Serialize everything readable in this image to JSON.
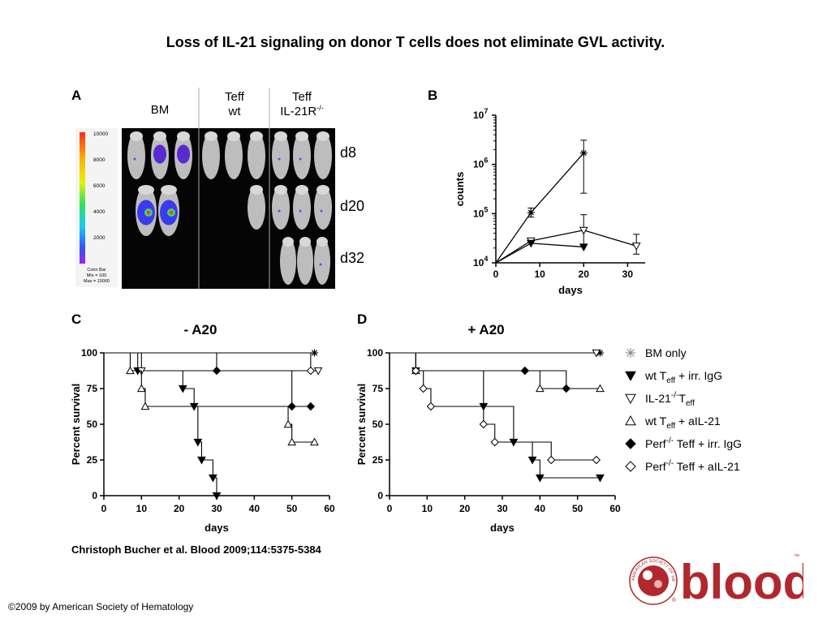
{
  "title": "Loss of IL-21 signaling on donor T cells does not eliminate GVL activity.",
  "citation": "Christoph Bucher et al. Blood 2009;114:5375-5384",
  "copyright": "©2009 by American Society of Hematology",
  "logo": {
    "text": "blood",
    "seal_text": "AMERICAN SOCIETY OF HEMATOLOGY",
    "tm": "™",
    "reg": "®",
    "color": "#b0282d"
  },
  "panels": {
    "A": {
      "letter": "A",
      "columns": [
        "BM",
        "Teff\nwt",
        "Teff\nIL-21R-/-"
      ],
      "rows": [
        "d8",
        "d20",
        "d32"
      ],
      "colorbar": {
        "ticks": [
          "10000",
          "8000",
          "6000",
          "4000",
          "2000"
        ],
        "caption": [
          "Color Bar",
          "Min = 100",
          "Max = 10000"
        ]
      }
    },
    "B": {
      "letter": "B"
    },
    "C": {
      "letter": "C"
    },
    "D": {
      "letter": "D"
    }
  },
  "legend": [
    {
      "marker": "asterisk",
      "label_parts": [
        [
          "BM only",
          ""
        ]
      ]
    },
    {
      "marker": "tri-down-filled",
      "label_parts": [
        [
          "wt T",
          ""
        ],
        [
          "eff",
          "sub"
        ],
        [
          " + irr. IgG",
          ""
        ]
      ]
    },
    {
      "marker": "tri-down-open",
      "label_parts": [
        [
          "IL-21",
          ""
        ],
        [
          "-/-",
          "sup"
        ],
        [
          "T",
          ""
        ],
        [
          "eff",
          "sub"
        ]
      ]
    },
    {
      "marker": "tri-up-open",
      "label_parts": [
        [
          "wt T",
          ""
        ],
        [
          "eff",
          "sub"
        ],
        [
          " + aIL-21",
          ""
        ]
      ]
    },
    {
      "marker": "diamond-filled",
      "label_parts": [
        [
          "Perf",
          ""
        ],
        [
          "-/-",
          "sup"
        ],
        [
          " Teff + irr. IgG",
          ""
        ]
      ]
    },
    {
      "marker": "diamond-open",
      "label_parts": [
        [
          "Perf",
          ""
        ],
        [
          "-/-",
          "sup"
        ],
        [
          "  Teff + aIL-21",
          ""
        ]
      ]
    }
  ],
  "chart_data": [
    {
      "panel": "B",
      "type": "line",
      "xlabel": "days",
      "ylabel": "counts",
      "xlim": [
        0,
        34
      ],
      "ylim": [
        10000,
        10000000
      ],
      "yscale": "log",
      "xticks": [
        0,
        10,
        20,
        30
      ],
      "yticks": [
        10000,
        100000,
        1000000,
        10000000
      ],
      "ytick_labels": [
        [
          "10",
          "4"
        ],
        [
          "10",
          "5"
        ],
        [
          "10",
          "6"
        ],
        [
          "10",
          "7"
        ]
      ],
      "series": [
        {
          "marker": "asterisk",
          "points": [
            [
              0,
              10000,
              null,
              null
            ],
            [
              8,
              105000,
              85000,
              130000
            ],
            [
              20,
              1700000,
              260000,
              3100000
            ]
          ]
        },
        {
          "marker": "tri-down-open",
          "points": [
            [
              0,
              10000,
              null,
              null
            ],
            [
              8,
              28000,
              null,
              null
            ],
            [
              20,
              46000,
              24000,
              95000
            ],
            [
              32,
              22000,
              15000,
              38000
            ]
          ]
        },
        {
          "marker": "tri-down-filled",
          "points": [
            [
              0,
              10000,
              null,
              null
            ],
            [
              8,
              25000,
              null,
              null
            ],
            [
              20,
              21000,
              null,
              null
            ]
          ]
        }
      ]
    },
    {
      "panel": "C",
      "type": "line",
      "title": "- A20",
      "xlabel": "days",
      "ylabel": "Percent survival",
      "xlim": [
        0,
        60
      ],
      "ylim": [
        0,
        100
      ],
      "xticks": [
        0,
        10,
        20,
        30,
        40,
        50,
        60
      ],
      "yticks": [
        0,
        25,
        50,
        75,
        100
      ],
      "series": [
        {
          "marker": "asterisk",
          "steps": [
            [
              0,
              100
            ],
            [
              56,
              100
            ]
          ],
          "markers": [
            [
              56,
              100
            ]
          ]
        },
        {
          "marker": "tri-down-filled",
          "steps": [
            [
              0,
              100
            ],
            [
              9,
              87.5
            ],
            [
              21,
              75
            ],
            [
              24,
              62.5
            ],
            [
              25,
              37.5
            ],
            [
              26,
              25
            ],
            [
              29,
              12.5
            ],
            [
              30,
              0
            ]
          ],
          "markers": [
            [
              9,
              87.5
            ],
            [
              21,
              75
            ],
            [
              24,
              62.5
            ],
            [
              25,
              37.5
            ],
            [
              26,
              25
            ],
            [
              29,
              12.5
            ],
            [
              30,
              0
            ]
          ]
        },
        {
          "marker": "tri-down-open",
          "steps": [
            [
              0,
              100
            ],
            [
              10,
              87.5
            ],
            [
              57,
              87.5
            ]
          ],
          "markers": [
            [
              10,
              87.5
            ],
            [
              57,
              87.5
            ]
          ]
        },
        {
          "marker": "tri-up-open",
          "steps": [
            [
              0,
              100
            ],
            [
              7,
              87.5
            ],
            [
              10,
              75
            ],
            [
              11,
              62.5
            ],
            [
              49,
              62.5
            ],
            [
              49,
              50
            ],
            [
              50,
              37.5
            ],
            [
              56,
              37.5
            ]
          ],
          "markers": [
            [
              7,
              87.5
            ],
            [
              10,
              75
            ],
            [
              11,
              62.5
            ],
            [
              49,
              50
            ],
            [
              50,
              37.5
            ],
            [
              56,
              37.5
            ]
          ]
        },
        {
          "marker": "diamond-filled",
          "steps": [
            [
              0,
              100
            ],
            [
              30,
              87.5
            ],
            [
              47,
              87.5
            ],
            [
              50,
              62.5
            ],
            [
              55,
              62.5
            ]
          ],
          "markers": [
            [
              30,
              87.5
            ],
            [
              50,
              62.5
            ],
            [
              55,
              62.5
            ]
          ]
        },
        {
          "marker": "diamond-open",
          "steps": [
            [
              0,
              100
            ],
            [
              55,
              87.5
            ]
          ],
          "markers": [
            [
              55,
              87.5
            ]
          ]
        }
      ]
    },
    {
      "panel": "D",
      "type": "line",
      "title": "+ A20",
      "xlabel": "days",
      "ylabel": "Percent survival",
      "xlim": [
        0,
        60
      ],
      "ylim": [
        0,
        100
      ],
      "xticks": [
        0,
        10,
        20,
        30,
        40,
        50,
        60
      ],
      "yticks": [
        0,
        25,
        50,
        75,
        100
      ],
      "series": [
        {
          "marker": "asterisk",
          "steps": [
            [
              0,
              100
            ],
            [
              56,
              100
            ]
          ],
          "markers": [
            [
              56,
              100
            ]
          ]
        },
        {
          "marker": "tri-down-open",
          "steps": [
            [
              0,
              100
            ],
            [
              55,
              100
            ]
          ],
          "markers": [
            [
              55,
              100
            ]
          ]
        },
        {
          "marker": "tri-down-filled",
          "steps": [
            [
              0,
              100
            ],
            [
              7,
              87.5
            ],
            [
              25,
              62.5
            ],
            [
              33,
              37.5
            ],
            [
              38,
              25
            ],
            [
              40,
              12.5
            ],
            [
              56,
              12.5
            ]
          ],
          "markers": [
            [
              7,
              87.5
            ],
            [
              25,
              62.5
            ],
            [
              33,
              37.5
            ],
            [
              38,
              25
            ],
            [
              40,
              12.5
            ],
            [
              56,
              12.5
            ]
          ]
        },
        {
          "marker": "tri-up-open",
          "steps": [
            [
              0,
              100
            ],
            [
              7,
              87.5
            ],
            [
              40,
              87.5
            ],
            [
              40,
              75
            ],
            [
              56,
              75
            ]
          ],
          "markers": [
            [
              7,
              87.5
            ],
            [
              40,
              75
            ],
            [
              56,
              75
            ]
          ]
        },
        {
          "marker": "diamond-filled",
          "steps": [
            [
              0,
              100
            ],
            [
              7,
              87.5
            ],
            [
              36,
              87.5
            ],
            [
              47,
              75
            ],
            [
              55,
              75
            ]
          ],
          "markers": [
            [
              7,
              87.5
            ],
            [
              36,
              87.5
            ],
            [
              47,
              75
            ]
          ]
        },
        {
          "marker": "diamond-open",
          "steps": [
            [
              0,
              100
            ],
            [
              7,
              87.5
            ],
            [
              9,
              75
            ],
            [
              11,
              62.5
            ],
            [
              25,
              50
            ],
            [
              28,
              37.5
            ],
            [
              43,
              25
            ],
            [
              55,
              25
            ]
          ],
          "markers": [
            [
              7,
              87.5
            ],
            [
              9,
              75
            ],
            [
              11,
              62.5
            ],
            [
              25,
              50
            ],
            [
              28,
              37.5
            ],
            [
              43,
              25
            ],
            [
              55,
              25
            ]
          ]
        }
      ]
    }
  ]
}
